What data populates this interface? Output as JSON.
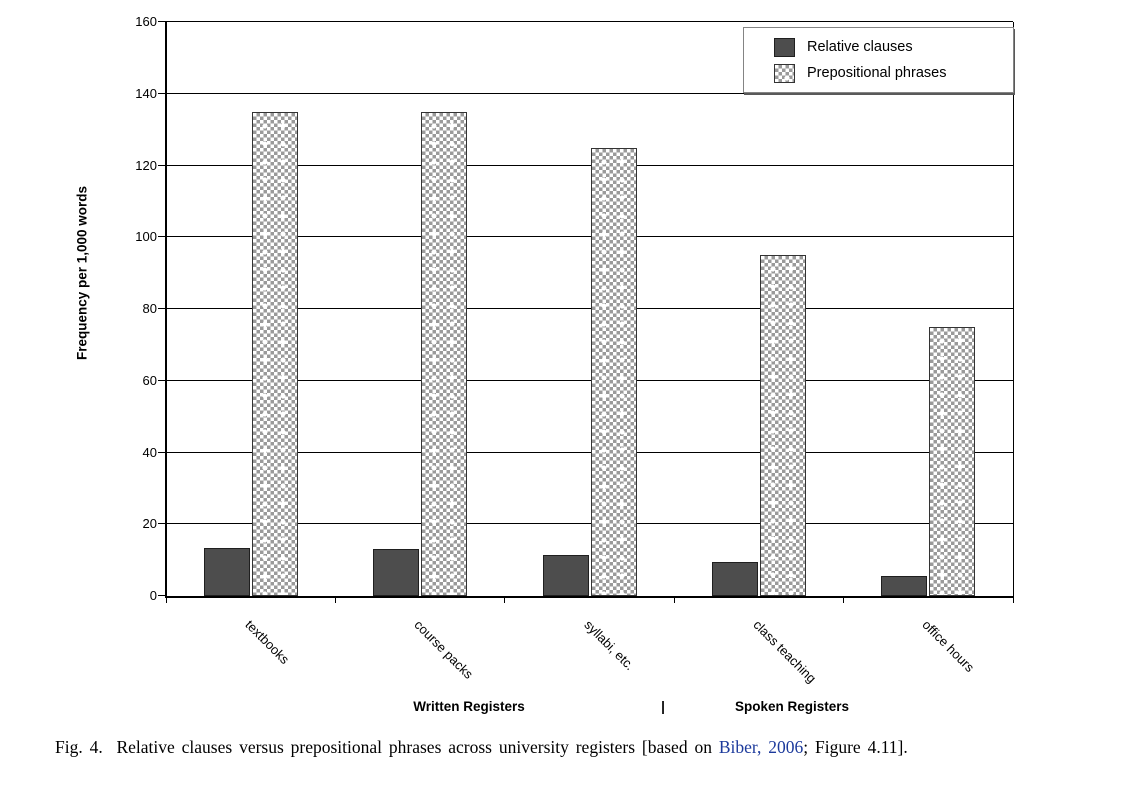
{
  "figure": {
    "caption": {
      "prefix": "Fig. 4.  Relative clauses versus prepositional phrases across university registers [based on ",
      "link": "Biber, 2006",
      "suffix": "; Figure 4.11].",
      "link_color": "#1c3a9c"
    }
  },
  "chart_data": {
    "type": "bar",
    "categories": [
      "textbooks",
      "course packs",
      "syllabi, etc.",
      "class teaching",
      "office hours"
    ],
    "series": [
      {
        "name": "Relative clauses",
        "style": "solid",
        "color": "#4d4d4d",
        "values": [
          13.5,
          13,
          11.5,
          9.5,
          5.5
        ]
      },
      {
        "name": "Prepositional phrases",
        "style": "checker",
        "color": "#9a9a9a",
        "values": [
          135,
          135,
          125,
          95,
          75
        ]
      }
    ],
    "title": "",
    "xlabel": "",
    "ylabel": "Frequency per 1,000 words",
    "ylim": [
      0,
      160
    ],
    "ytick_step": 20,
    "grid": true,
    "legend_position": "top-right",
    "group_labels": {
      "written": "Written Registers",
      "separator": "|",
      "spoken": "Spoken Registers"
    }
  }
}
